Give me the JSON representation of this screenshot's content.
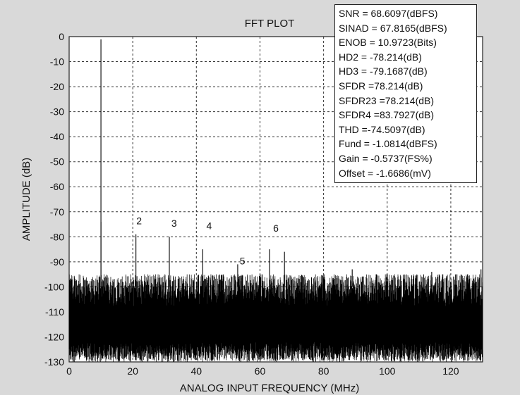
{
  "chart_data": {
    "type": "line",
    "title": "FFT PLOT",
    "xlabel": "ANALOG INPUT FREQUENCY (MHz)",
    "ylabel": "AMPLITUDE (dB)",
    "xlim": [
      0,
      130
    ],
    "ylim": [
      -130,
      0
    ],
    "x_ticks": [
      0,
      20,
      40,
      60,
      80,
      100,
      120
    ],
    "y_ticks": [
      0,
      -10,
      -20,
      -30,
      -40,
      -50,
      -60,
      -70,
      -80,
      -90,
      -100,
      -110,
      -120,
      -130
    ],
    "grid": "dashed",
    "noise_floor_db": [
      -130,
      -95
    ],
    "spurs": [
      {
        "x": 10,
        "y": -1.1
      },
      {
        "x": 10,
        "y": -74
      },
      {
        "x": 21,
        "y": -79
      },
      {
        "x": 31.5,
        "y": -80
      },
      {
        "x": 42,
        "y": -85
      },
      {
        "x": 53,
        "y": -91
      },
      {
        "x": 63,
        "y": -85
      },
      {
        "x": 67.7,
        "y": -86
      },
      {
        "x": 89,
        "y": -93
      },
      {
        "x": 114,
        "y": -94
      },
      {
        "x": 129.5,
        "y": -93
      }
    ],
    "annotations": [
      {
        "text": "2",
        "x": 22,
        "y": -75
      },
      {
        "text": "3",
        "x": 33,
        "y": -76
      },
      {
        "text": "4",
        "x": 44,
        "y": -77
      },
      {
        "text": "5",
        "x": 54.5,
        "y": -91
      },
      {
        "text": "6",
        "x": 65,
        "y": -78
      }
    ]
  },
  "stats": [
    "SNR = 68.6097(dBFS)",
    "SINAD = 67.8165(dBFS)",
    "ENOB = 10.9723(Bits)",
    "HD2 = -78.214(dB)",
    "HD3 = -79.1687(dB)",
    "SFDR =78.214(dB)",
    "SFDR23 =78.214(dB)",
    "SFDR4 =83.7927(dB)",
    "THD =-74.5097(dB)",
    "Fund = -1.0814(dBFS)",
    "Gain = -0.5737(FS%)",
    "Offset = -1.6686(mV)"
  ]
}
